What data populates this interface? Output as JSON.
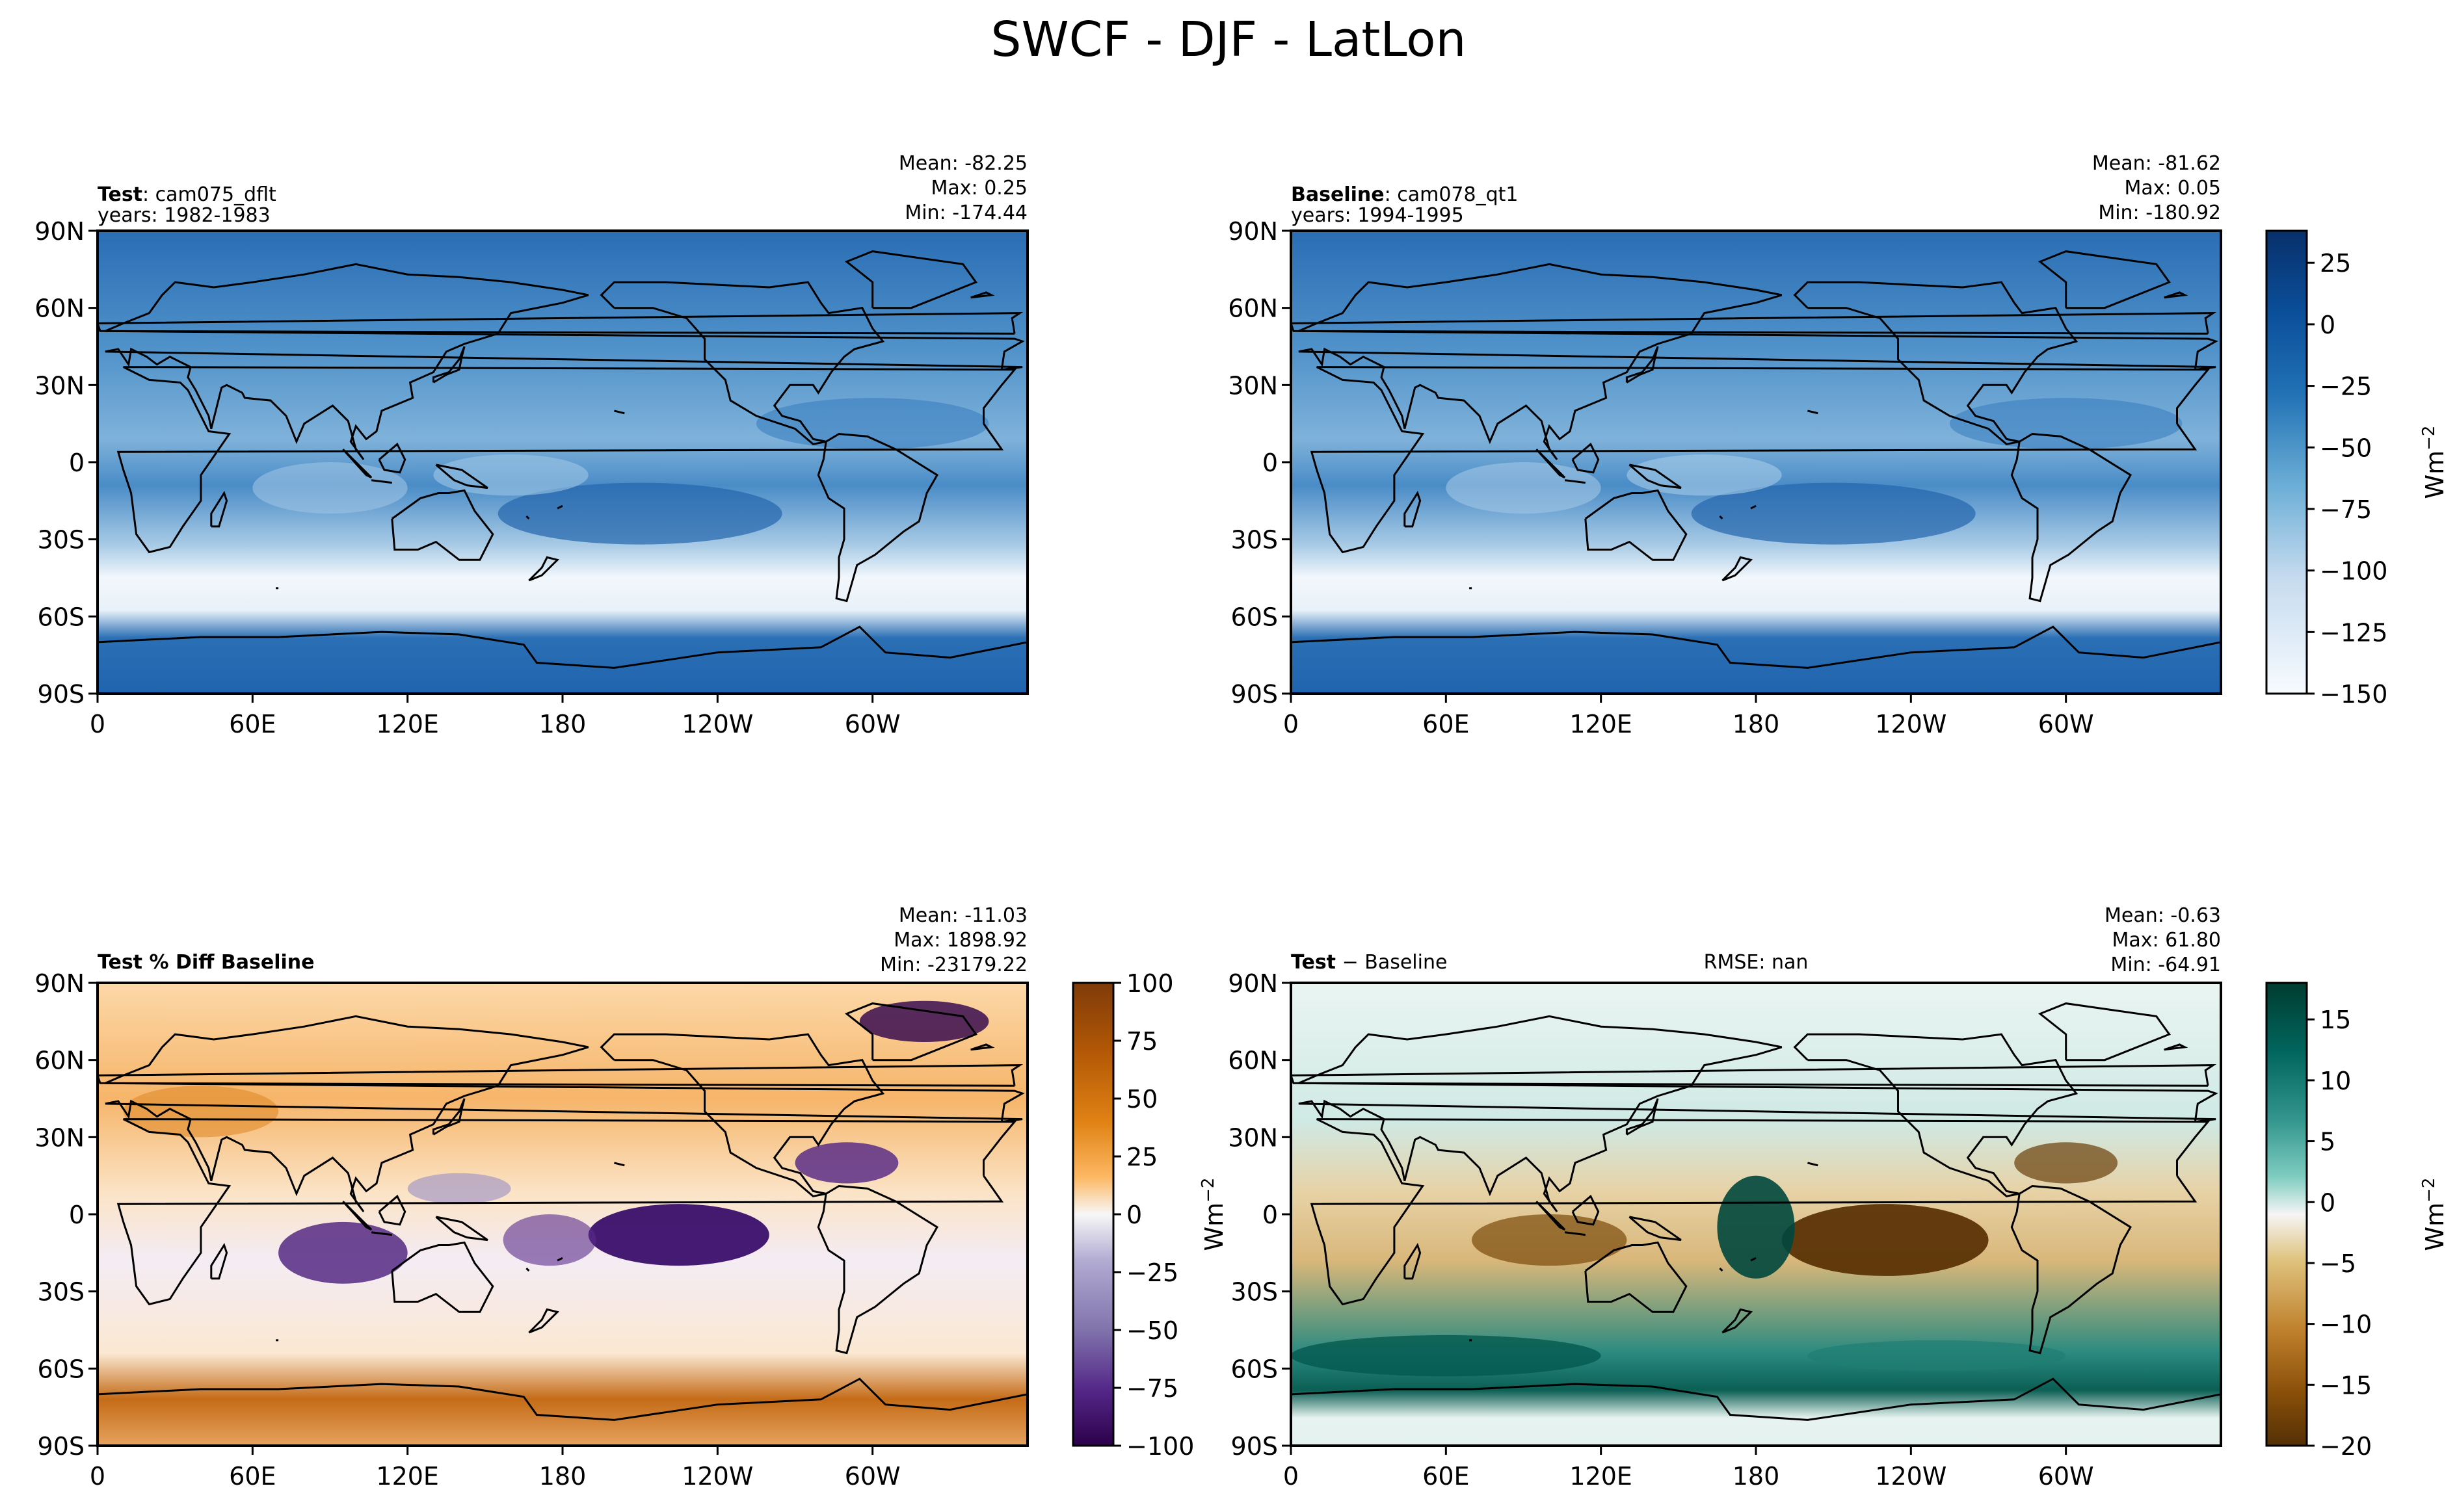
{
  "figure": {
    "title": "SWCF - DJF - LatLon"
  },
  "chart_data": [
    {
      "type": "heatmap",
      "panel": "test",
      "label_bold": "Test",
      "label_rest": ": cam075_dflt",
      "years": "years: 1982-1983",
      "stats": [
        "Mean: -82.25",
        "Max:  0.25",
        "Min: -174.44"
      ],
      "lat_ticks": [
        "90N",
        "60N",
        "30N",
        "0",
        "30S",
        "60S",
        "90S"
      ],
      "lon_ticks": [
        "0",
        "60E",
        "120E",
        "180",
        "120W",
        "60W"
      ],
      "colormap": "Blues_r",
      "vmin": -150,
      "vmax": 38
    },
    {
      "type": "heatmap",
      "panel": "baseline",
      "label_bold": "Baseline",
      "label_rest": ": cam078_qt1",
      "years": "years: 1994-1995",
      "stats": [
        "Mean: -81.62",
        "Max:  0.05",
        "Min: -180.92"
      ],
      "lat_ticks": [
        "90N",
        "60N",
        "30N",
        "0",
        "30S",
        "60S",
        "90S"
      ],
      "lon_ticks": [
        "0",
        "60E",
        "120E",
        "180",
        "120W",
        "60W"
      ],
      "colormap": "Blues_r",
      "colorbar_ticks": [
        "25",
        "0",
        "−25",
        "−50",
        "−75",
        "−100",
        "−125",
        "−150"
      ],
      "colorbar_values": [
        25,
        0,
        -25,
        -50,
        -75,
        -100,
        -125,
        -150
      ],
      "colorbar_label": "Wm",
      "colorbar_label_sup": "−2",
      "vmin": -150,
      "vmax": 38
    },
    {
      "type": "heatmap",
      "panel": "pctdiff",
      "label_bold": "Test % Diff Baseline",
      "stats": [
        "Mean: -11.03",
        "Max: 1898.92",
        "Min: -23179.22"
      ],
      "lat_ticks": [
        "90N",
        "60N",
        "30N",
        "0",
        "30S",
        "60S",
        "90S"
      ],
      "lon_ticks": [
        "0",
        "60E",
        "120E",
        "180",
        "120W",
        "60W"
      ],
      "colormap": "PuOr_r",
      "colorbar_ticks": [
        "100",
        "75",
        "50",
        "25",
        "0",
        "−25",
        "−50",
        "−75",
        "−100"
      ],
      "colorbar_values": [
        100,
        75,
        50,
        25,
        0,
        -25,
        -50,
        -75,
        -100
      ],
      "vmin": -100,
      "vmax": 100
    },
    {
      "type": "heatmap",
      "panel": "diff",
      "label_bold": "Test",
      "label_rest": " − Baseline",
      "rmse": "RMSE: nan",
      "stats": [
        "Mean: -0.63",
        "Max: 61.80",
        "Min: -64.91"
      ],
      "lat_ticks": [
        "90N",
        "60N",
        "30N",
        "0",
        "30S",
        "60S",
        "90S"
      ],
      "lon_ticks": [
        "0",
        "60E",
        "120E",
        "180",
        "120W",
        "60W"
      ],
      "colormap": "BrBG",
      "colorbar_ticks": [
        "15",
        "10",
        "5",
        "0",
        "−5",
        "−10",
        "−15",
        "−20"
      ],
      "colorbar_values": [
        15,
        10,
        5,
        0,
        -5,
        -10,
        -15,
        -20
      ],
      "colorbar_label": "Wm",
      "colorbar_label_sup": "−2",
      "ylabel_left": "Wm",
      "ylabel_left_sup": "−2",
      "vmin": -20,
      "vmax": 18
    }
  ]
}
